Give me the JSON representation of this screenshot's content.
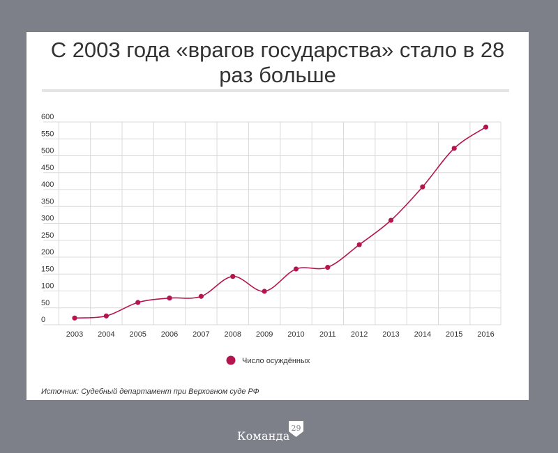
{
  "header": {
    "title": "С 2003 года «врагов государства» стало в 28 раз больше"
  },
  "chart_data": {
    "type": "line",
    "x": [
      "2003",
      "2004",
      "2005",
      "2006",
      "2007",
      "2008",
      "2009",
      "2010",
      "2011",
      "2012",
      "2013",
      "2014",
      "2015",
      "2016"
    ],
    "series": [
      {
        "name": "Число осуждённых",
        "values": [
          20,
          26,
          66,
          79,
          84,
          143,
          99,
          165,
          170,
          237,
          309,
          408,
          522,
          585
        ],
        "color": "#b5154f"
      }
    ],
    "yticks": [
      0,
      50,
      100,
      150,
      200,
      250,
      300,
      350,
      400,
      450,
      500,
      550,
      600
    ],
    "ylim": [
      0,
      600
    ],
    "grid": true,
    "legend_position": "bottom",
    "xlabel": "",
    "ylabel": ""
  },
  "footer": {
    "source": "Источник: Судебный департамент при Верховном суде РФ"
  },
  "brand": {
    "name": "Команда",
    "number": "29"
  }
}
